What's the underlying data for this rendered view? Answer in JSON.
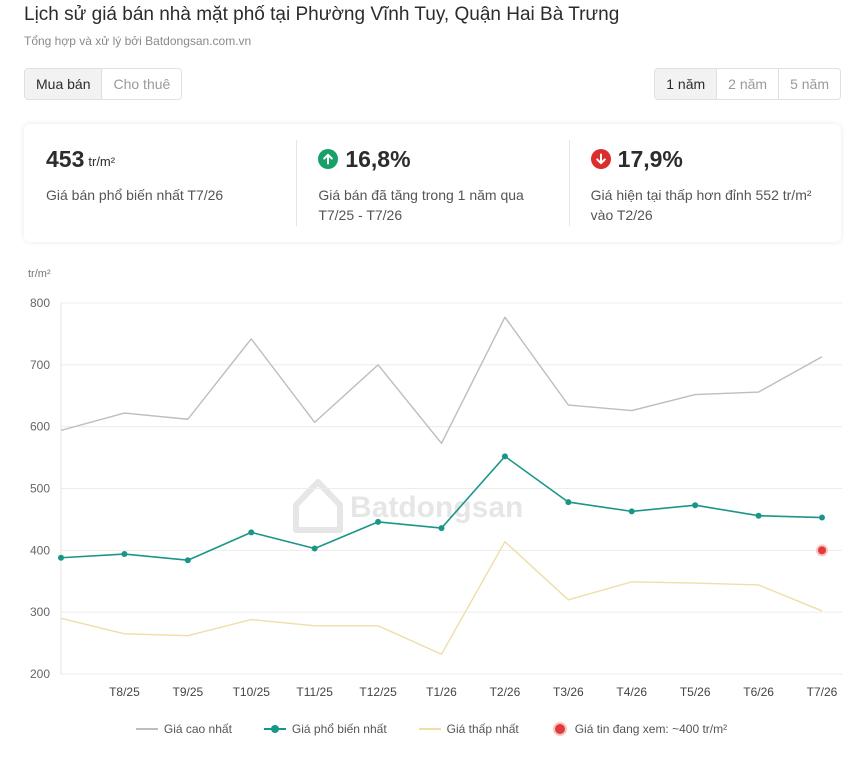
{
  "header": {
    "title": "Lịch sử giá bán nhà mặt phố tại Phường Vĩnh Tuy, Quận Hai Bà Trưng",
    "subtitle": "Tổng hợp và xử lý bởi Batdongsan.com.vn"
  },
  "tabs": [
    {
      "label": "Mua bán",
      "active": true
    },
    {
      "label": "Cho thuê",
      "active": false
    }
  ],
  "ranges": [
    {
      "label": "1 năm",
      "active": true
    },
    {
      "label": "2 năm",
      "active": false
    },
    {
      "label": "5 năm",
      "active": false
    }
  ],
  "stats": [
    {
      "value": "453",
      "unit": "tr/m²",
      "description": "Giá bán phổ biến nhất T7/26"
    },
    {
      "value": "16,8%",
      "icon": "arrow-up-icon",
      "description": "Giá bán đã tăng trong 1 năm qua T7/25 - T7/26"
    },
    {
      "value": "17,9%",
      "icon": "arrow-down-icon",
      "description": "Giá hiện tại thấp hơn đỉnh 552 tr/m² vào T2/26"
    }
  ],
  "colors": {
    "high": "#bdbdbd",
    "common": "#1a9688",
    "low": "#efdea7",
    "current": "#e23b3b",
    "up": "#17a169",
    "down": "#dc2d2d"
  },
  "chart_data": {
    "type": "line",
    "y_unit": "tr/m²",
    "ylim": [
      200,
      800
    ],
    "yticks": [
      200,
      300,
      400,
      500,
      600,
      700,
      800
    ],
    "grid": true,
    "categories": [
      "T7/25",
      "T8/25",
      "T9/25",
      "T10/25",
      "T11/25",
      "T12/25",
      "T1/26",
      "T2/26",
      "T3/26",
      "T4/26",
      "T5/26",
      "T6/26",
      "T7/26"
    ],
    "tick_labels": [
      "",
      "T8/25",
      "T9/25",
      "T10/25",
      "T11/25",
      "T12/25",
      "T1/26",
      "T2/26",
      "T3/26",
      "T4/26",
      "T5/26",
      "T6/26",
      "T7/26"
    ],
    "series": [
      {
        "name": "Giá cao nhất",
        "key": "high",
        "values": [
          594,
          622,
          612,
          742,
          607,
          700,
          573,
          777,
          635,
          626,
          652,
          656,
          713
        ]
      },
      {
        "name": "Giá phổ biến nhất",
        "key": "common",
        "values": [
          388,
          394,
          384,
          429,
          403,
          446,
          436,
          552,
          478,
          463,
          473,
          456,
          453
        ]
      },
      {
        "name": "Giá thấp nhất",
        "key": "low",
        "values": [
          290,
          265,
          262,
          288,
          278,
          278,
          232,
          414,
          320,
          349,
          347,
          344,
          302
        ]
      }
    ],
    "current_listing": {
      "label": "Giá tin đang xem: ~400 tr/m²",
      "category": "T7/26",
      "value": 400
    },
    "watermark": "Batdongsan",
    "legend_position": "bottom"
  }
}
